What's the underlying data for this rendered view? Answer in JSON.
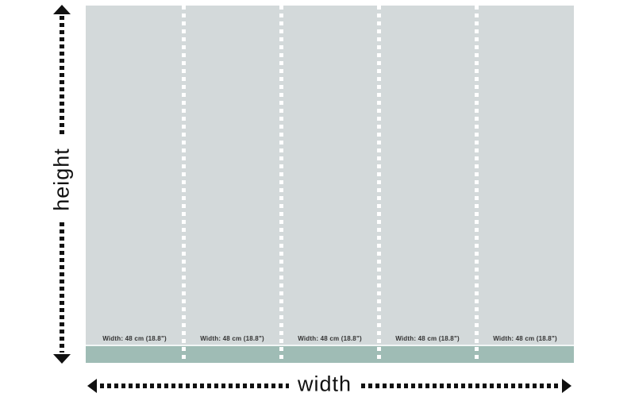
{
  "diagram": {
    "height_label": "height",
    "width_label": "width"
  },
  "panels": [
    {
      "label": "Width: 48 cm (18.8\")"
    },
    {
      "label": "Width: 48 cm (18.8\")"
    },
    {
      "label": "Width: 48 cm (18.8\")"
    },
    {
      "label": "Width: 48 cm (18.8\")"
    },
    {
      "label": "Width: 48 cm (18.8\")"
    }
  ],
  "colors": {
    "panel_background": "#d3d9da",
    "base_strip": "#9fbcb5",
    "divider_dashes": "#ffffff",
    "arrow_and_text": "#111111",
    "panel_label_text": "#333333",
    "page_background": "#ffffff"
  }
}
